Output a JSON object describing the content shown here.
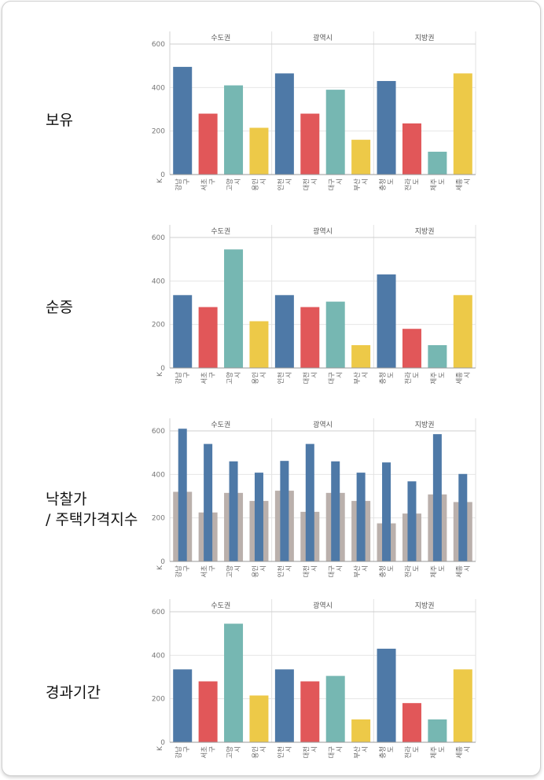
{
  "colors": {
    "blue": "#4e79a7",
    "red": "#e15759",
    "teal": "#76b7b2",
    "yellow": "#edc948",
    "gray": "#bab0ac"
  },
  "chart_data": [
    {
      "type": "bar",
      "row_label": "보유",
      "groups": [
        "수도권",
        "광역시",
        "지방권"
      ],
      "categories": [
        {
          "name": [
            "강남",
            "구"
          ],
          "group": "수도권",
          "color": "blue"
        },
        {
          "name": [
            "서초",
            "구"
          ],
          "group": "수도권",
          "color": "red"
        },
        {
          "name": [
            "고양",
            "시"
          ],
          "group": "수도권",
          "color": "teal"
        },
        {
          "name": [
            "용인",
            "시"
          ],
          "group": "수도권",
          "color": "yellow"
        },
        {
          "name": [
            "인천",
            "시"
          ],
          "group": "광역시",
          "color": "blue"
        },
        {
          "name": [
            "대전",
            "시"
          ],
          "group": "광역시",
          "color": "red"
        },
        {
          "name": [
            "대구",
            "시"
          ],
          "group": "광역시",
          "color": "teal"
        },
        {
          "name": [
            "부산",
            "시"
          ],
          "group": "광역시",
          "color": "yellow"
        },
        {
          "name": [
            "충청",
            "도"
          ],
          "group": "지방권",
          "color": "blue"
        },
        {
          "name": [
            "전라",
            "도"
          ],
          "group": "지방권",
          "color": "red"
        },
        {
          "name": [
            "제주",
            "도"
          ],
          "group": "지방권",
          "color": "teal"
        },
        {
          "name": [
            "세종",
            "시"
          ],
          "group": "지방권",
          "color": "yellow"
        }
      ],
      "series": [
        {
          "values": [
            495,
            280,
            410,
            215,
            465,
            280,
            390,
            160,
            430,
            235,
            105,
            465
          ]
        }
      ],
      "ylim": [
        0,
        600
      ],
      "yticks": [
        0,
        200,
        400,
        600
      ],
      "y_unit": "K",
      "grid": true
    },
    {
      "type": "bar",
      "row_label": "순증",
      "groups": [
        "수도권",
        "광역시",
        "지방권"
      ],
      "categories": [
        {
          "name": [
            "강남",
            "구"
          ],
          "group": "수도권",
          "color": "blue"
        },
        {
          "name": [
            "서초",
            "구"
          ],
          "group": "수도권",
          "color": "red"
        },
        {
          "name": [
            "고양",
            "시"
          ],
          "group": "수도권",
          "color": "teal"
        },
        {
          "name": [
            "용인",
            "시"
          ],
          "group": "수도권",
          "color": "yellow"
        },
        {
          "name": [
            "인천",
            "시"
          ],
          "group": "광역시",
          "color": "blue"
        },
        {
          "name": [
            "대전",
            "시"
          ],
          "group": "광역시",
          "color": "red"
        },
        {
          "name": [
            "대구",
            "시"
          ],
          "group": "광역시",
          "color": "teal"
        },
        {
          "name": [
            "부산",
            "시"
          ],
          "group": "광역시",
          "color": "yellow"
        },
        {
          "name": [
            "충청",
            "도"
          ],
          "group": "지방권",
          "color": "blue"
        },
        {
          "name": [
            "전라",
            "도"
          ],
          "group": "지방권",
          "color": "red"
        },
        {
          "name": [
            "제주",
            "도"
          ],
          "group": "지방권",
          "color": "teal"
        },
        {
          "name": [
            "세종",
            "시"
          ],
          "group": "지방권",
          "color": "yellow"
        }
      ],
      "series": [
        {
          "values": [
            335,
            280,
            545,
            215,
            335,
            280,
            305,
            105,
            430,
            180,
            105,
            335
          ]
        }
      ],
      "ylim": [
        0,
        600
      ],
      "yticks": [
        0,
        200,
        400,
        600
      ],
      "y_unit": "K",
      "grid": true
    },
    {
      "type": "bar",
      "row_label": "낙찰가\n/ 주택가격지수",
      "groups": [
        "수도권",
        "광역시",
        "지방권"
      ],
      "categories": [
        {
          "name": [
            "강남",
            "구"
          ],
          "group": "수도권",
          "color": "blue"
        },
        {
          "name": [
            "서초",
            "구"
          ],
          "group": "수도권",
          "color": "blue"
        },
        {
          "name": [
            "고양",
            "시"
          ],
          "group": "수도권",
          "color": "blue"
        },
        {
          "name": [
            "용인",
            "시"
          ],
          "group": "수도권",
          "color": "blue"
        },
        {
          "name": [
            "인천",
            "시"
          ],
          "group": "광역시",
          "color": "blue"
        },
        {
          "name": [
            "대전",
            "시"
          ],
          "group": "광역시",
          "color": "blue"
        },
        {
          "name": [
            "대구",
            "시"
          ],
          "group": "광역시",
          "color": "blue"
        },
        {
          "name": [
            "부산",
            "시"
          ],
          "group": "광역시",
          "color": "blue"
        },
        {
          "name": [
            "충청",
            "도"
          ],
          "group": "지방권",
          "color": "blue"
        },
        {
          "name": [
            "전라",
            "도"
          ],
          "group": "지방권",
          "color": "blue"
        },
        {
          "name": [
            "제주",
            "도"
          ],
          "group": "지방권",
          "color": "blue"
        },
        {
          "name": [
            "세종",
            "시"
          ],
          "group": "지방권",
          "color": "blue"
        }
      ],
      "series": [
        {
          "values": [
            320,
            225,
            315,
            278,
            325,
            228,
            315,
            278,
            175,
            220,
            308,
            273
          ],
          "color": "gray",
          "style": "wide"
        },
        {
          "values": [
            610,
            540,
            460,
            408,
            462,
            540,
            460,
            408,
            455,
            368,
            585,
            402
          ],
          "color": "blue",
          "style": "narrow"
        }
      ],
      "ylim": [
        0,
        600
      ],
      "yticks": [
        0,
        200,
        400,
        600
      ],
      "y_unit": "K",
      "grid": true
    },
    {
      "type": "bar",
      "row_label": "경과기간",
      "groups": [
        "수도권",
        "광역시",
        "지방권"
      ],
      "categories": [
        {
          "name": [
            "강남",
            "구"
          ],
          "group": "수도권",
          "color": "blue"
        },
        {
          "name": [
            "서초",
            "구"
          ],
          "group": "수도권",
          "color": "red"
        },
        {
          "name": [
            "고양",
            "시"
          ],
          "group": "수도권",
          "color": "teal"
        },
        {
          "name": [
            "용인",
            "시"
          ],
          "group": "수도권",
          "color": "yellow"
        },
        {
          "name": [
            "인천",
            "시"
          ],
          "group": "광역시",
          "color": "blue"
        },
        {
          "name": [
            "대전",
            "시"
          ],
          "group": "광역시",
          "color": "red"
        },
        {
          "name": [
            "대구",
            "시"
          ],
          "group": "광역시",
          "color": "teal"
        },
        {
          "name": [
            "부산",
            "시"
          ],
          "group": "광역시",
          "color": "yellow"
        },
        {
          "name": [
            "충청",
            "도"
          ],
          "group": "지방권",
          "color": "blue"
        },
        {
          "name": [
            "전라",
            "도"
          ],
          "group": "지방권",
          "color": "red"
        },
        {
          "name": [
            "제주",
            "도"
          ],
          "group": "지방권",
          "color": "teal"
        },
        {
          "name": [
            "세종",
            "시"
          ],
          "group": "지방권",
          "color": "yellow"
        }
      ],
      "series": [
        {
          "values": [
            335,
            280,
            545,
            215,
            335,
            280,
            305,
            105,
            430,
            180,
            105,
            335
          ]
        }
      ],
      "ylim": [
        0,
        600
      ],
      "yticks": [
        0,
        200,
        400,
        600
      ],
      "y_unit": "K",
      "grid": true
    }
  ]
}
